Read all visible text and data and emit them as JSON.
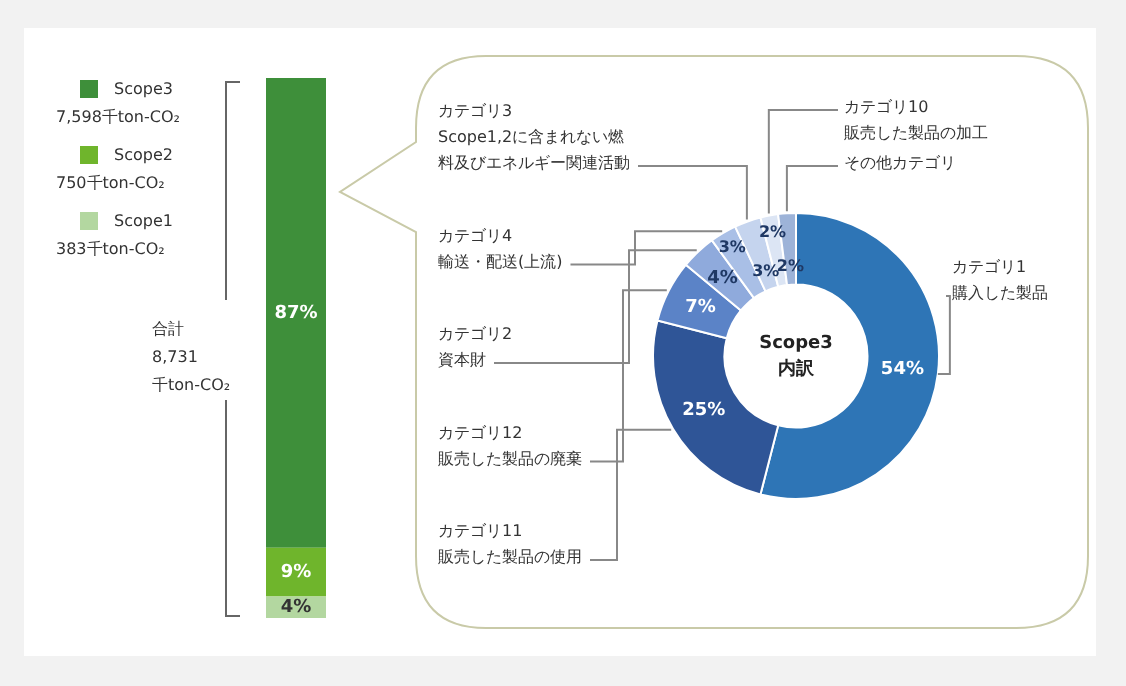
{
  "chart_data": [
    {
      "type": "bar",
      "stacked": true,
      "categories": [
        null
      ],
      "legend": "left",
      "series": [
        {
          "name": "Scope1",
          "color": "#b3d7a0",
          "values": [
            4
          ],
          "value_labels": [
            "4%"
          ]
        },
        {
          "name": "Scope2",
          "color": "#6fb52c",
          "values": [
            9
          ],
          "value_labels": [
            "9%"
          ]
        },
        {
          "name": "Scope3",
          "color": "#3e8f3a",
          "values": [
            87
          ],
          "value_labels": [
            "87%"
          ]
        }
      ],
      "annotations": [
        "383千ton-CO₂",
        "750千ton-CO₂",
        "7,598千ton-CO₂",
        "合計\n8,731\n千ton-CO₂"
      ]
    },
    {
      "type": "donut",
      "categories": [
        "カテゴリ1\n購入した製品",
        "カテゴリ11\n販売した製品の使用",
        "カテゴリ12\n販売した製品の廃棄",
        "カテゴリ2\n資本財",
        "カテゴリ4\n輸送・配送(上流)",
        "カテゴリ3\nScope1,2に含まれない燃料及びエネルギー関連活動",
        "カテゴリ10\n販売した製品の加工",
        "その他カテゴリ"
      ],
      "values": [
        54,
        25,
        7,
        4,
        3,
        3,
        2,
        2
      ],
      "colors": [
        "#2e75b6",
        "#2f5597",
        "#5b83c7",
        "#8faadc",
        "#a9bfe6",
        "#c5d4ee",
        "#dce5f4",
        "#9db3d8"
      ],
      "value_labels": [
        "54%",
        "25%",
        "7%",
        "4%",
        "3%",
        "3%",
        "2%",
        "2%"
      ],
      "annotations": [
        "Scope3\n内訳"
      ]
    }
  ]
}
